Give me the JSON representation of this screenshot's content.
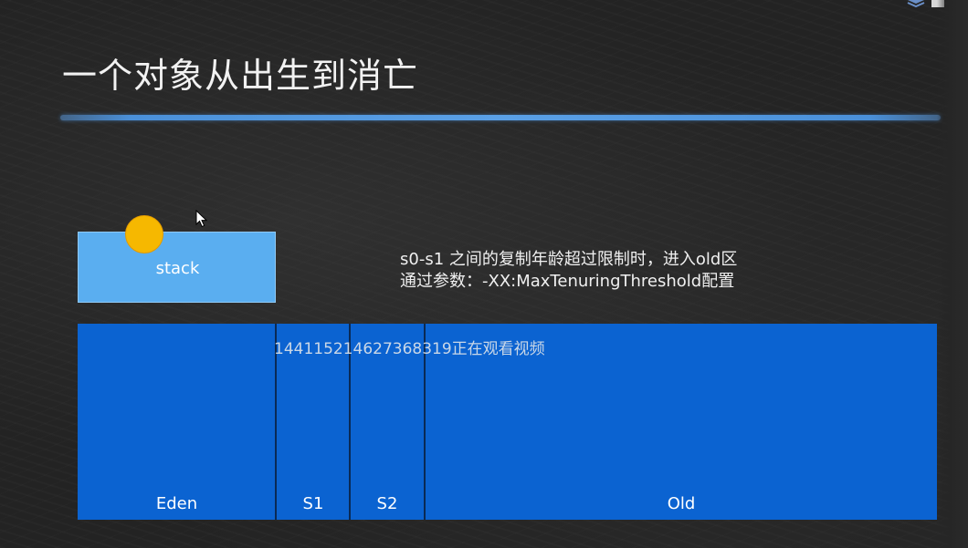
{
  "slide": {
    "title": "一个对象从出生到消亡"
  },
  "diagram": {
    "stack": {
      "label": "stack",
      "object_color": "#f6b800",
      "fill_color": "#5aaef0"
    },
    "notes": [
      "s0-s1 之间的复制年龄超过限制时，进入old区",
      "通过参数：-XX:MaxTenuringThreshold配置"
    ],
    "heap": {
      "fill_color": "#0b63d1",
      "regions": [
        {
          "label": "Eden"
        },
        {
          "label": "S1"
        },
        {
          "label": "S2"
        },
        {
          "label": "Old"
        }
      ]
    }
  },
  "overlay": {
    "viewer_text": "1441152146273683​19正在观看视频"
  },
  "accent_color": "#4a90d9",
  "icons": {
    "cursor": "mouse-pointer-icon",
    "logo": "logo-icon"
  }
}
